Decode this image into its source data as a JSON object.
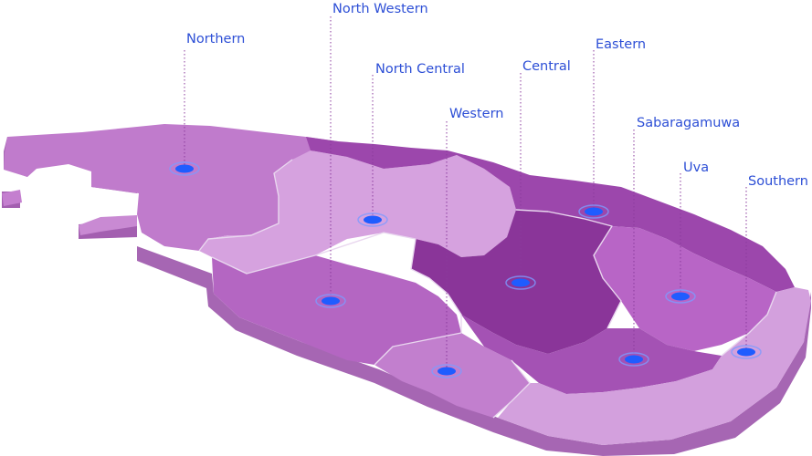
{
  "colors": {
    "label": "#2d4fd6",
    "marker": "#1f5cff",
    "marker_ring": "#7d9bff",
    "leader": "#8a3a9c",
    "region_light": "#d6a2df",
    "region_mid": "#c07bcc",
    "region_dark": "#9c47ac",
    "region_darkest": "#7e2f8e",
    "side": "#a666b3"
  },
  "provinces": [
    {
      "name": "Northern"
    },
    {
      "name": "North Western"
    },
    {
      "name": "North Central"
    },
    {
      "name": "Western"
    },
    {
      "name": "Central"
    },
    {
      "name": "Eastern"
    },
    {
      "name": "Sabaragamuwa"
    },
    {
      "name": "Uva"
    },
    {
      "name": "Southern"
    }
  ]
}
